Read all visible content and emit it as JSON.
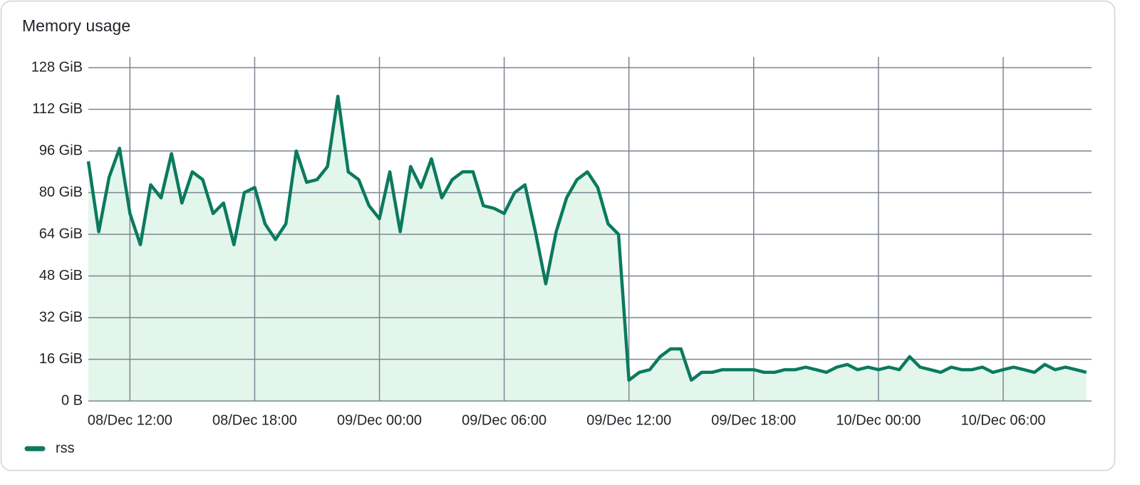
{
  "chart_data": {
    "type": "area",
    "title": "Memory usage",
    "x": [
      "08/Dec 10:00",
      "08/Dec 10:30",
      "08/Dec 11:00",
      "08/Dec 11:30",
      "08/Dec 12:00",
      "08/Dec 12:30",
      "08/Dec 13:00",
      "08/Dec 13:30",
      "08/Dec 14:00",
      "08/Dec 14:30",
      "08/Dec 15:00",
      "08/Dec 15:30",
      "08/Dec 16:00",
      "08/Dec 16:30",
      "08/Dec 17:00",
      "08/Dec 17:30",
      "08/Dec 18:00",
      "08/Dec 18:30",
      "08/Dec 19:00",
      "08/Dec 19:30",
      "08/Dec 20:00",
      "08/Dec 20:30",
      "08/Dec 21:00",
      "08/Dec 21:30",
      "08/Dec 22:00",
      "08/Dec 22:30",
      "08/Dec 23:00",
      "08/Dec 23:30",
      "09/Dec 00:00",
      "09/Dec 00:30",
      "09/Dec 01:00",
      "09/Dec 01:30",
      "09/Dec 02:00",
      "09/Dec 02:30",
      "09/Dec 03:00",
      "09/Dec 03:30",
      "09/Dec 04:00",
      "09/Dec 04:30",
      "09/Dec 05:00",
      "09/Dec 05:30",
      "09/Dec 06:00",
      "09/Dec 06:30",
      "09/Dec 07:00",
      "09/Dec 07:30",
      "09/Dec 08:00",
      "09/Dec 08:30",
      "09/Dec 09:00",
      "09/Dec 09:30",
      "09/Dec 10:00",
      "09/Dec 10:30",
      "09/Dec 11:00",
      "09/Dec 11:30",
      "09/Dec 12:00",
      "09/Dec 12:30",
      "09/Dec 13:00",
      "09/Dec 13:30",
      "09/Dec 14:00",
      "09/Dec 14:30",
      "09/Dec 15:00",
      "09/Dec 15:30",
      "09/Dec 16:00",
      "09/Dec 16:30",
      "09/Dec 17:00",
      "09/Dec 17:30",
      "09/Dec 18:00",
      "09/Dec 18:30",
      "09/Dec 19:00",
      "09/Dec 19:30",
      "09/Dec 20:00",
      "09/Dec 20:30",
      "09/Dec 21:00",
      "09/Dec 21:30",
      "09/Dec 22:00",
      "09/Dec 22:30",
      "09/Dec 23:00",
      "09/Dec 23:30",
      "10/Dec 00:00",
      "10/Dec 00:30",
      "10/Dec 01:00",
      "10/Dec 01:30",
      "10/Dec 02:00",
      "10/Dec 02:30",
      "10/Dec 03:00",
      "10/Dec 03:30",
      "10/Dec 04:00",
      "10/Dec 04:30",
      "10/Dec 05:00",
      "10/Dec 05:30",
      "10/Dec 06:00",
      "10/Dec 06:30",
      "10/Dec 07:00",
      "10/Dec 07:30",
      "10/Dec 08:00",
      "10/Dec 08:30",
      "10/Dec 09:00",
      "10/Dec 09:30",
      "10/Dec 10:00"
    ],
    "series": [
      {
        "name": "rss",
        "color": "#0b7a5e",
        "fill": "#e3f6ec",
        "values": [
          92,
          65,
          86,
          97,
          72,
          60,
          83,
          78,
          95,
          76,
          88,
          85,
          72,
          76,
          60,
          80,
          82,
          68,
          62,
          68,
          96,
          84,
          85,
          90,
          117,
          88,
          85,
          75,
          70,
          88,
          65,
          90,
          82,
          93,
          78,
          85,
          88,
          88,
          75,
          74,
          72,
          80,
          83,
          65,
          45,
          65,
          78,
          85,
          88,
          82,
          68,
          64,
          8,
          11,
          12,
          17,
          20,
          20,
          8,
          11,
          11,
          12,
          12,
          12,
          12,
          11,
          11,
          12,
          12,
          13,
          12,
          11,
          13,
          14,
          12,
          13,
          12,
          13,
          12,
          17,
          13,
          12,
          11,
          13,
          12,
          12,
          13,
          11,
          12,
          13,
          12,
          11,
          14,
          12,
          13,
          12,
          11
        ]
      }
    ],
    "xlim": [
      "08/Dec 10:00",
      "10/Dec 10:15"
    ],
    "xticks": [
      "08/Dec 12:00",
      "08/Dec 18:00",
      "09/Dec 00:00",
      "09/Dec 06:00",
      "09/Dec 12:00",
      "09/Dec 18:00",
      "10/Dec 00:00",
      "10/Dec 06:00"
    ],
    "ylim": [
      0,
      128
    ],
    "yticks": [
      {
        "value": 0,
        "label": "0 B"
      },
      {
        "value": 16,
        "label": "16 GiB"
      },
      {
        "value": 32,
        "label": "32 GiB"
      },
      {
        "value": 48,
        "label": "48 GiB"
      },
      {
        "value": 64,
        "label": "64 GiB"
      },
      {
        "value": 80,
        "label": "80 GiB"
      },
      {
        "value": 96,
        "label": "96 GiB"
      },
      {
        "value": 112,
        "label": "112 GiB"
      },
      {
        "value": 128,
        "label": "128 GiB"
      }
    ],
    "grid": true,
    "legend": "bottom-left"
  }
}
